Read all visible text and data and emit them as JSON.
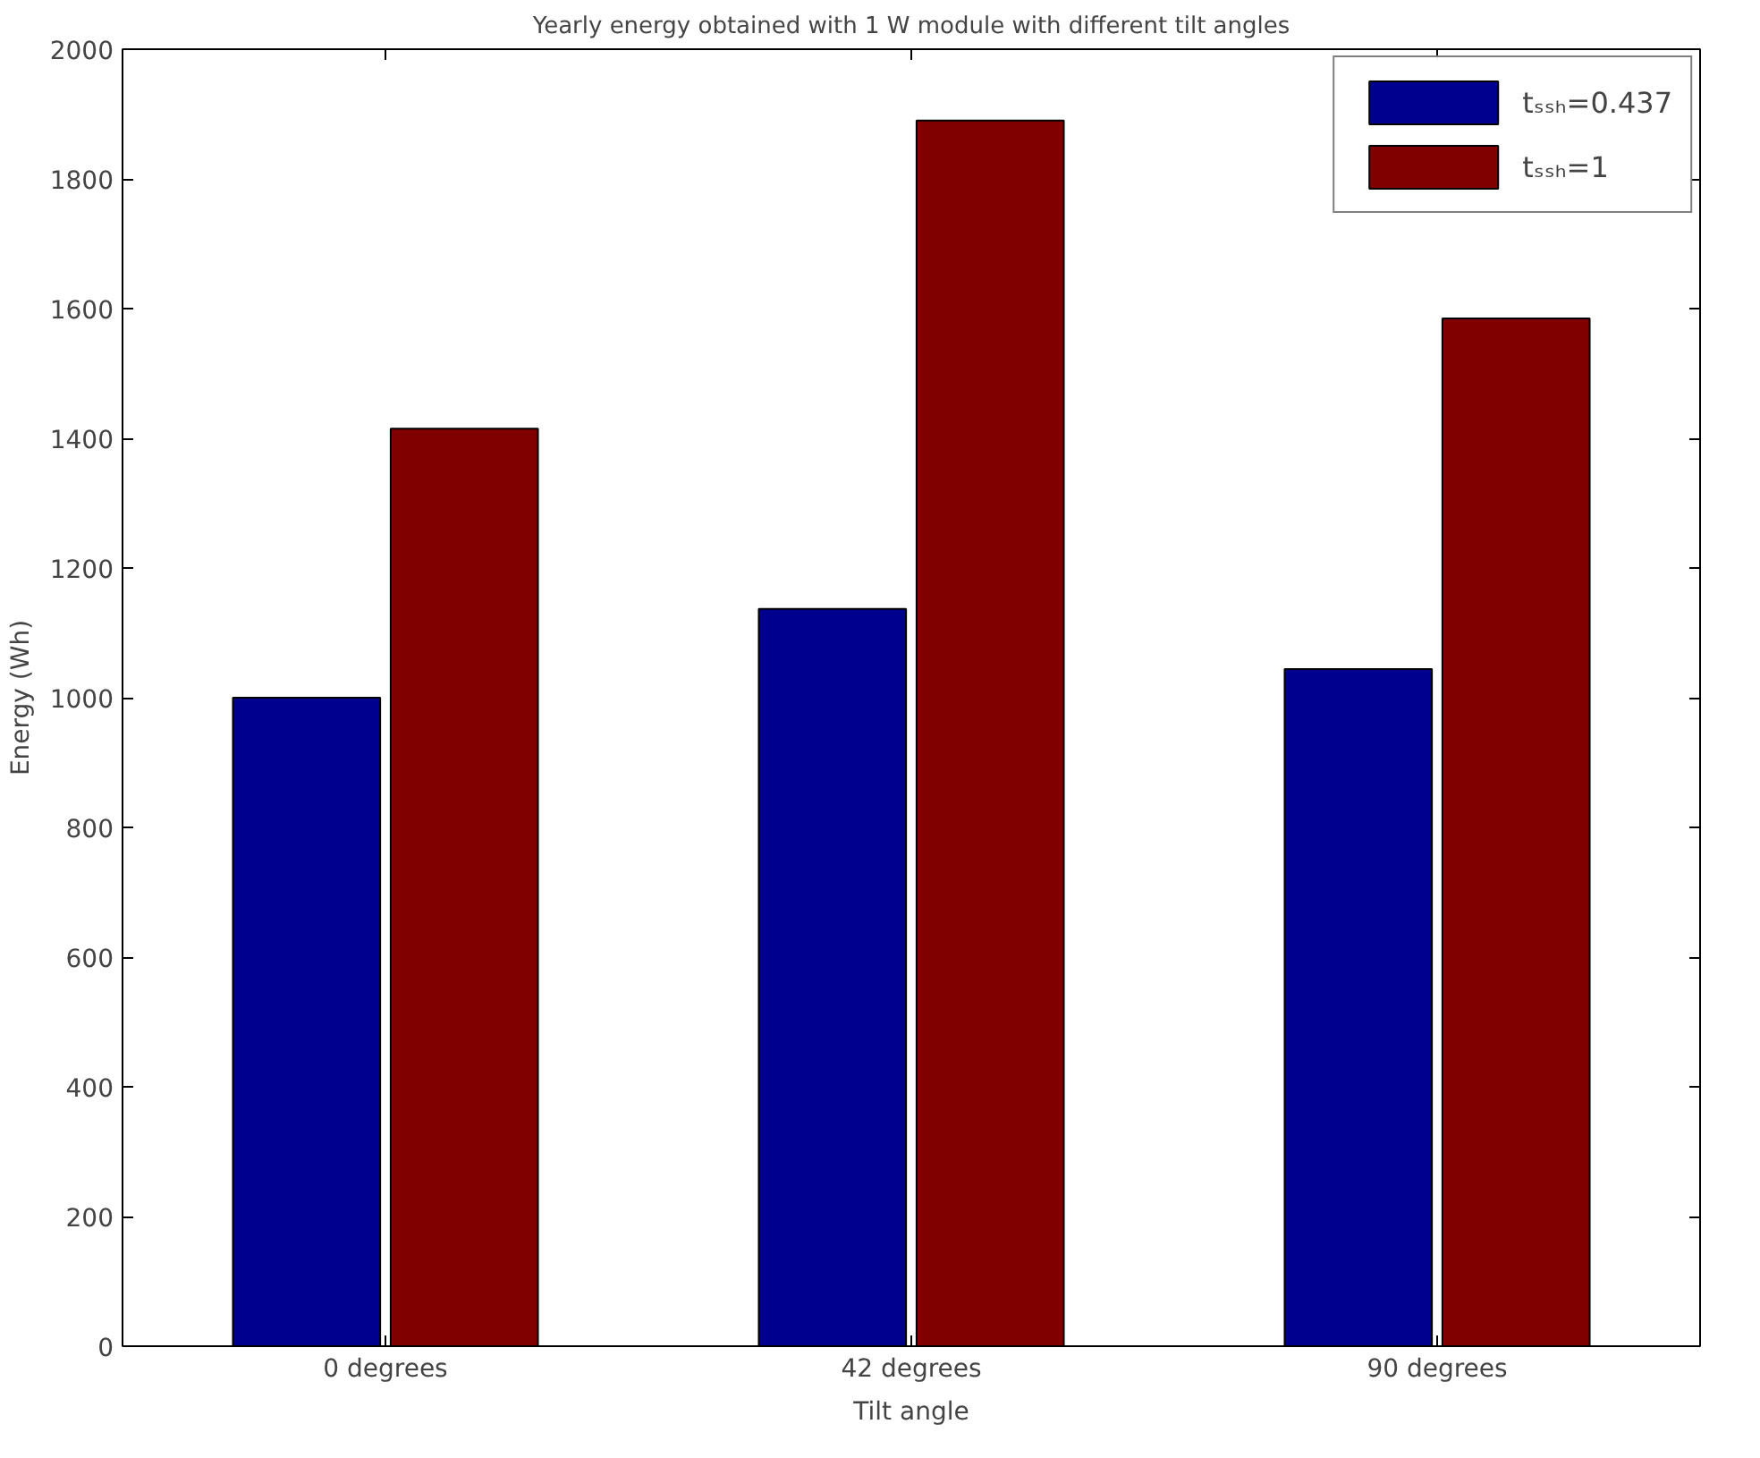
{
  "chart_data": {
    "type": "bar",
    "title": "Yearly energy obtained with 1 W module with different tilt angles",
    "xlabel": "Tilt angle",
    "ylabel": "Energy (Wh)",
    "categories": [
      "0 degrees",
      "42 degrees",
      "90 degrees"
    ],
    "series": [
      {
        "name": "tₛₛₕ=0.437",
        "color": "#00008f",
        "values": [
          1000,
          1137,
          1044
        ]
      },
      {
        "name": "tₛₛₕ=1",
        "color": "#800000",
        "values": [
          1415,
          1890,
          1585
        ]
      }
    ],
    "ylim": [
      0,
      2000
    ],
    "yticks": [
      0,
      200,
      400,
      600,
      800,
      1000,
      1200,
      1400,
      1600,
      1800,
      2000
    ],
    "grid": false,
    "legend": "top right"
  }
}
